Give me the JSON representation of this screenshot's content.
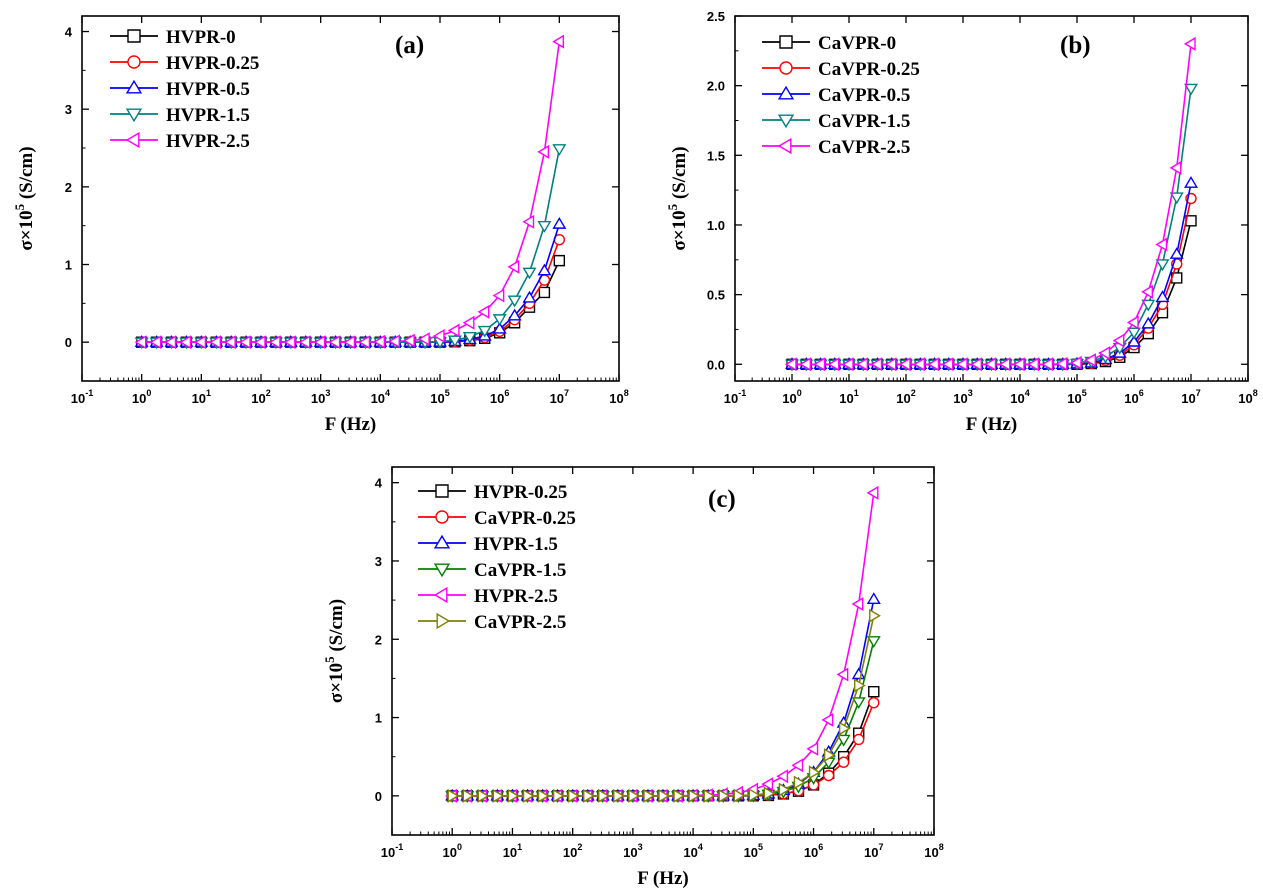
{
  "chart_data": [
    {
      "type": "line",
      "panel_label": "(a)",
      "xlabel": "F (Hz)",
      "ylabel_main": "σ×10",
      "ylabel_sup": "5",
      "ylabel_unit": " (S/cm)",
      "x_scale": "log",
      "xlim_exp": [
        -1,
        8
      ],
      "ylim": [
        -0.5,
        4.2
      ],
      "x_ticks_exp": [
        -1,
        0,
        1,
        2,
        3,
        4,
        5,
        6,
        7,
        8
      ],
      "y_ticks": [
        0,
        1,
        2,
        3,
        4
      ],
      "y_tick_labels": [
        "0",
        "1",
        "2",
        "3",
        "4"
      ],
      "legend_position": "top-left",
      "grid": false,
      "x": [
        1,
        1.78,
        3.16,
        5.62,
        10,
        17.8,
        31.6,
        56.2,
        100,
        178,
        316,
        562,
        1000,
        1780,
        3160,
        5620,
        10000,
        17800,
        31600,
        56200,
        100000,
        178000,
        316000,
        562000,
        1000000,
        1780000,
        3160000,
        5620000,
        10000000
      ],
      "series": [
        {
          "name": "HVPR-0",
          "color": "#000000",
          "marker": "square",
          "values": [
            0,
            0,
            0,
            0,
            0,
            0,
            0,
            0,
            0,
            0,
            0,
            0,
            0,
            0,
            0,
            0,
            0,
            0,
            0,
            0,
            0,
            0.005,
            0.02,
            0.05,
            0.12,
            0.25,
            0.45,
            0.64,
            1.05
          ]
        },
        {
          "name": "HVPR-0.25",
          "color": "#ff0000",
          "marker": "circle",
          "values": [
            0,
            0,
            0,
            0,
            0,
            0,
            0,
            0,
            0,
            0,
            0,
            0,
            0,
            0,
            0,
            0,
            0,
            0,
            0,
            0,
            0,
            0.006,
            0.025,
            0.06,
            0.14,
            0.29,
            0.5,
            0.8,
            1.32
          ]
        },
        {
          "name": "HVPR-0.5",
          "color": "#0000ff",
          "marker": "triangle-up",
          "values": [
            0,
            0,
            0,
            0,
            0,
            0,
            0,
            0,
            0,
            0,
            0,
            0,
            0,
            0,
            0,
            0,
            0,
            0,
            0,
            0,
            0.002,
            0.01,
            0.035,
            0.08,
            0.17,
            0.34,
            0.57,
            0.92,
            1.52
          ]
        },
        {
          "name": "HVPR-1.5",
          "color": "#008080",
          "marker": "triangle-down",
          "values": [
            0,
            0,
            0,
            0,
            0,
            0,
            0,
            0,
            0,
            0,
            0,
            0,
            0,
            0,
            0,
            0,
            0,
            0,
            0,
            0,
            0.005,
            0.025,
            0.07,
            0.15,
            0.3,
            0.54,
            0.9,
            1.5,
            2.49
          ]
        },
        {
          "name": "HVPR-2.5",
          "color": "#ff00ff",
          "marker": "triangle-left",
          "values": [
            0,
            0,
            0,
            0,
            0,
            0,
            0,
            0,
            0,
            0,
            0,
            0,
            0,
            0,
            0,
            0,
            0.005,
            0.01,
            0.02,
            0.04,
            0.08,
            0.15,
            0.25,
            0.39,
            0.6,
            0.97,
            1.55,
            2.45,
            3.87
          ]
        }
      ]
    },
    {
      "type": "line",
      "panel_label": "(b)",
      "xlabel": "F (Hz)",
      "ylabel_main": "σ×10",
      "ylabel_sup": "5",
      "ylabel_unit": " (S/cm)",
      "x_scale": "log",
      "xlim_exp": [
        -1,
        8
      ],
      "ylim": [
        -0.12,
        2.5
      ],
      "x_ticks_exp": [
        -1,
        0,
        1,
        2,
        3,
        4,
        5,
        6,
        7,
        8
      ],
      "y_ticks": [
        0,
        0.5,
        1.0,
        1.5,
        2.0,
        2.5
      ],
      "y_tick_labels": [
        "0.0",
        "0.5",
        "1.0",
        "1.5",
        "2.0",
        "2.5"
      ],
      "legend_position": "top-left",
      "grid": false,
      "x": [
        1,
        1.78,
        3.16,
        5.62,
        10,
        17.8,
        31.6,
        56.2,
        100,
        178,
        316,
        562,
        1000,
        1780,
        3160,
        5620,
        10000,
        17800,
        31600,
        56200,
        100000,
        178000,
        316000,
        562000,
        1000000,
        1780000,
        3160000,
        5620000,
        10000000
      ],
      "series": [
        {
          "name": "CaVPR-0",
          "color": "#000000",
          "marker": "square",
          "values": [
            0,
            0,
            0,
            0,
            0,
            0,
            0,
            0,
            0,
            0,
            0,
            0,
            0,
            0,
            0,
            0,
            0,
            0,
            0,
            0,
            0,
            0.005,
            0.02,
            0.05,
            0.12,
            0.22,
            0.37,
            0.62,
            1.03
          ]
        },
        {
          "name": "CaVPR-0.25",
          "color": "#ff0000",
          "marker": "circle",
          "values": [
            0,
            0,
            0,
            0,
            0,
            0,
            0,
            0,
            0,
            0,
            0,
            0,
            0,
            0,
            0,
            0,
            0,
            0,
            0,
            0,
            0.002,
            0.008,
            0.028,
            0.065,
            0.14,
            0.26,
            0.43,
            0.72,
            1.19
          ]
        },
        {
          "name": "CaVPR-0.5",
          "color": "#0000ff",
          "marker": "triangle-up",
          "values": [
            0,
            0,
            0,
            0,
            0,
            0,
            0,
            0,
            0,
            0,
            0,
            0,
            0,
            0,
            0,
            0,
            0,
            0,
            0,
            0,
            0.003,
            0.01,
            0.035,
            0.08,
            0.16,
            0.29,
            0.48,
            0.79,
            1.3
          ]
        },
        {
          "name": "CaVPR-1.5",
          "color": "#008080",
          "marker": "triangle-down",
          "values": [
            0,
            0,
            0,
            0,
            0,
            0,
            0,
            0,
            0,
            0,
            0,
            0,
            0,
            0,
            0,
            0,
            0,
            0,
            0,
            0,
            0.005,
            0.02,
            0.055,
            0.12,
            0.23,
            0.43,
            0.72,
            1.2,
            1.98
          ]
        },
        {
          "name": "CaVPR-2.5",
          "color": "#ff00ff",
          "marker": "triangle-left",
          "values": [
            0,
            0,
            0,
            0,
            0,
            0,
            0,
            0,
            0,
            0,
            0,
            0,
            0,
            0,
            0,
            0,
            0,
            0,
            0,
            0.003,
            0.01,
            0.03,
            0.08,
            0.17,
            0.3,
            0.52,
            0.86,
            1.41,
            2.3
          ]
        }
      ]
    },
    {
      "type": "line",
      "panel_label": "(c)",
      "xlabel": "F (Hz)",
      "ylabel_main": "σ×10",
      "ylabel_sup": "5",
      "ylabel_unit": " (S/cm)",
      "x_scale": "log",
      "xlim_exp": [
        -1,
        8
      ],
      "ylim": [
        -0.5,
        4.2
      ],
      "x_ticks_exp": [
        -1,
        0,
        1,
        2,
        3,
        4,
        5,
        6,
        7,
        8
      ],
      "y_ticks": [
        0,
        1,
        2,
        3,
        4
      ],
      "y_tick_labels": [
        "0",
        "1",
        "2",
        "3",
        "4"
      ],
      "legend_position": "top-left",
      "grid": false,
      "x": [
        1,
        1.78,
        3.16,
        5.62,
        10,
        17.8,
        31.6,
        56.2,
        100,
        178,
        316,
        562,
        1000,
        1780,
        3160,
        5620,
        10000,
        17800,
        31600,
        56200,
        100000,
        178000,
        316000,
        562000,
        1000000,
        1780000,
        3160000,
        5620000,
        10000000
      ],
      "series": [
        {
          "name": "HVPR-0.25",
          "color": "#000000",
          "marker": "square",
          "values": [
            0,
            0,
            0,
            0,
            0,
            0,
            0,
            0,
            0,
            0,
            0,
            0,
            0,
            0,
            0,
            0,
            0,
            0,
            0,
            0,
            0,
            0.006,
            0.025,
            0.06,
            0.14,
            0.29,
            0.5,
            0.8,
            1.33
          ]
        },
        {
          "name": "CaVPR-0.25",
          "color": "#ff0000",
          "marker": "circle",
          "values": [
            0,
            0,
            0,
            0,
            0,
            0,
            0,
            0,
            0,
            0,
            0,
            0,
            0,
            0,
            0,
            0,
            0,
            0,
            0,
            0,
            0.002,
            0.008,
            0.028,
            0.065,
            0.14,
            0.26,
            0.43,
            0.72,
            1.19
          ]
        },
        {
          "name": "HVPR-1.5",
          "color": "#0000ff",
          "marker": "triangle-up",
          "values": [
            0,
            0,
            0,
            0,
            0,
            0,
            0,
            0,
            0,
            0,
            0,
            0,
            0,
            0,
            0,
            0,
            0,
            0,
            0,
            0,
            0.005,
            0.025,
            0.07,
            0.15,
            0.3,
            0.56,
            0.93,
            1.55,
            2.51
          ]
        },
        {
          "name": "CaVPR-1.5",
          "color": "#008000",
          "marker": "triangle-down",
          "values": [
            0,
            0,
            0,
            0,
            0,
            0,
            0,
            0,
            0,
            0,
            0,
            0,
            0,
            0,
            0,
            0,
            0,
            0,
            0,
            0,
            0.005,
            0.02,
            0.055,
            0.12,
            0.23,
            0.43,
            0.72,
            1.2,
            1.98
          ]
        },
        {
          "name": "HVPR-2.5",
          "color": "#ff00ff",
          "marker": "triangle-left",
          "values": [
            0,
            0,
            0,
            0,
            0,
            0,
            0,
            0,
            0,
            0,
            0,
            0,
            0,
            0,
            0,
            0,
            0.005,
            0.01,
            0.02,
            0.04,
            0.08,
            0.15,
            0.25,
            0.39,
            0.6,
            0.97,
            1.55,
            2.45,
            3.87
          ]
        },
        {
          "name": "CaVPR-2.5",
          "color": "#808000",
          "marker": "triangle-right",
          "values": [
            0,
            0,
            0,
            0,
            0,
            0,
            0,
            0,
            0,
            0,
            0,
            0,
            0,
            0,
            0,
            0,
            0,
            0,
            0,
            0.003,
            0.01,
            0.03,
            0.08,
            0.17,
            0.3,
            0.52,
            0.86,
            1.41,
            2.3
          ]
        }
      ]
    }
  ]
}
